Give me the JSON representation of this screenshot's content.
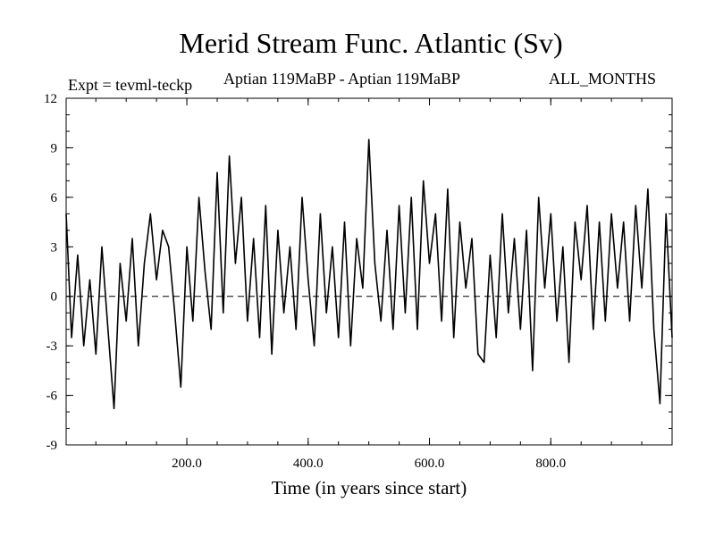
{
  "chart_data": {
    "type": "line",
    "title": "Merid Stream Func. Atlantic (Sv)",
    "experiment_label": "Expt = tevml-teckp",
    "comparison_label": "Aptian   119MaBP - Aptian   119MaBP",
    "period_label": "ALL_MONTHS",
    "xlabel": "Time (in years since start)",
    "ylabel": "",
    "xlim": [
      1,
      1000
    ],
    "ylim": [
      -9,
      12
    ],
    "xticks": [
      200,
      400,
      600,
      800
    ],
    "xtick_labels": [
      "200.0",
      "400.0",
      "600.0",
      "800.0"
    ],
    "yticks": [
      -9,
      -6,
      -3,
      0,
      3,
      6,
      9,
      12
    ],
    "ytick_labels": [
      "-9",
      "-6",
      "-3",
      "0",
      "3",
      "6",
      "9",
      "12"
    ],
    "reference_line": 0,
    "series": [
      {
        "name": "Merid Stream Func. Atlantic",
        "x": [
          1,
          10,
          20,
          30,
          40,
          50,
          60,
          70,
          80,
          90,
          100,
          110,
          120,
          130,
          140,
          150,
          160,
          170,
          180,
          190,
          200,
          210,
          220,
          230,
          240,
          250,
          260,
          270,
          280,
          290,
          300,
          310,
          320,
          330,
          340,
          350,
          360,
          370,
          380,
          390,
          400,
          410,
          420,
          430,
          440,
          450,
          460,
          470,
          480,
          490,
          500,
          510,
          520,
          530,
          540,
          550,
          560,
          570,
          580,
          590,
          600,
          610,
          620,
          630,
          640,
          650,
          660,
          670,
          680,
          690,
          700,
          710,
          720,
          730,
          740,
          750,
          760,
          770,
          780,
          790,
          800,
          810,
          820,
          830,
          840,
          850,
          860,
          870,
          880,
          890,
          900,
          910,
          920,
          930,
          940,
          950,
          960,
          970,
          980,
          990,
          1000
        ],
        "values": [
          5.0,
          -2.5,
          2.5,
          -3.0,
          1.0,
          -3.5,
          3.0,
          -2.0,
          -6.8,
          2.0,
          -1.5,
          3.5,
          -3.0,
          2.0,
          5.0,
          1.0,
          4.0,
          3.0,
          -1.0,
          -5.5,
          3.0,
          -1.5,
          6.0,
          1.5,
          -2.0,
          7.5,
          -1.0,
          8.5,
          2.0,
          6.0,
          -1.5,
          3.5,
          -2.5,
          5.5,
          -3.5,
          4.0,
          -1.0,
          3.0,
          -2.0,
          6.0,
          1.0,
          -3.0,
          5.0,
          -1.0,
          3.0,
          -2.5,
          4.5,
          -3.0,
          3.5,
          0.5,
          9.5,
          2.0,
          -1.5,
          4.0,
          -2.0,
          5.5,
          -1.0,
          6.0,
          -2.0,
          7.0,
          2.0,
          5.0,
          -1.5,
          6.5,
          -2.5,
          4.5,
          0.5,
          3.5,
          -3.5,
          -4.0,
          2.5,
          -2.5,
          5.0,
          -1.0,
          3.5,
          -2.0,
          4.0,
          -4.5,
          6.0,
          0.5,
          5.0,
          -1.5,
          3.0,
          -4.0,
          4.5,
          1.0,
          5.5,
          -2.0,
          4.5,
          -1.5,
          5.0,
          0.5,
          4.5,
          -1.5,
          5.5,
          0.5,
          6.5,
          -2.0,
          -6.5,
          5.0,
          -2.5
        ]
      }
    ]
  }
}
